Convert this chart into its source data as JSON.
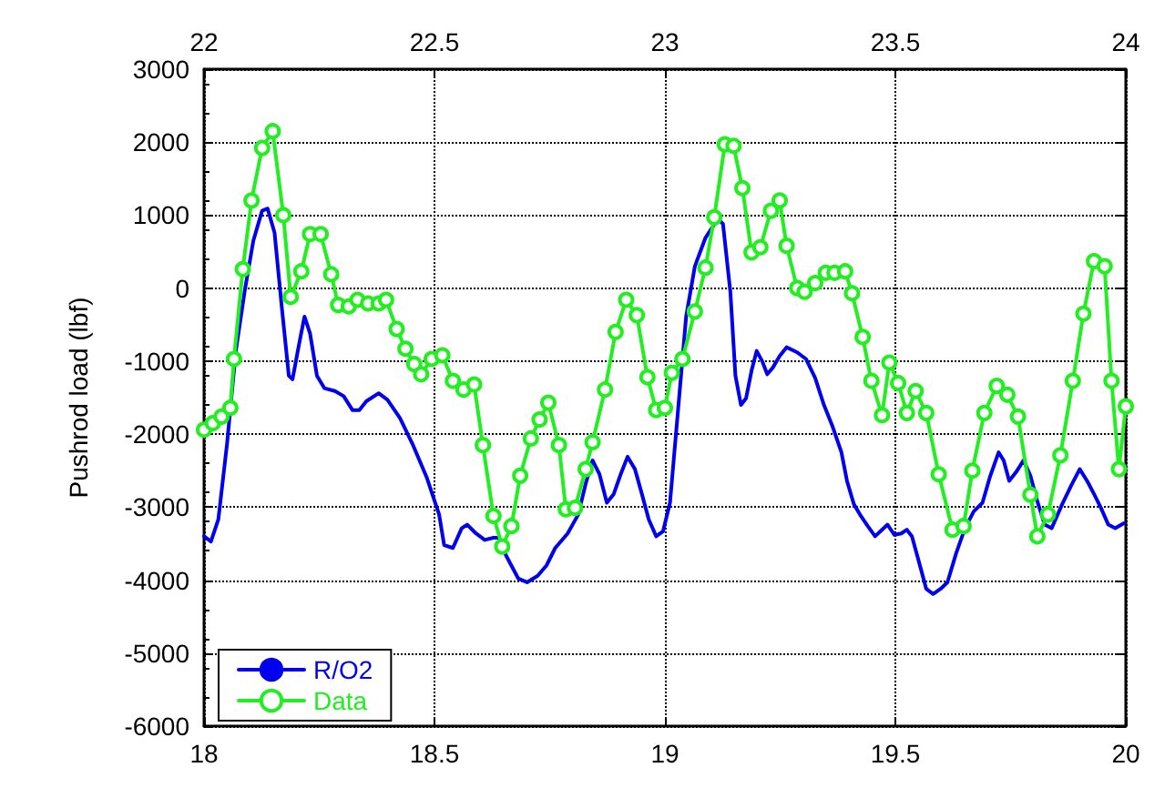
{
  "chart_data": {
    "type": "line",
    "ylabel": "Pushrod load (lbf)",
    "xlim": [
      18,
      20
    ],
    "xticks": [
      18,
      18.5,
      19,
      19.5,
      20
    ],
    "x2lim": [
      22,
      24
    ],
    "x2ticks": [
      22,
      22.5,
      23,
      23.5,
      24
    ],
    "ylim": [
      -6000,
      3000
    ],
    "yticks": [
      -6000,
      -5000,
      -4000,
      -3000,
      -2000,
      -1000,
      0,
      1000,
      2000,
      3000
    ],
    "grid": true,
    "legend": "bottom left",
    "line_style": "solid",
    "series": [
      {
        "name": "R/O2",
        "color": "#0000ee",
        "marker": "none",
        "x": [
          18.0,
          18.015,
          18.031,
          18.05,
          18.069,
          18.088,
          18.107,
          18.126,
          18.138,
          18.153,
          18.169,
          18.184,
          18.192,
          18.207,
          18.218,
          18.23,
          18.245,
          18.261,
          18.284,
          18.303,
          18.322,
          18.337,
          18.352,
          18.379,
          18.398,
          18.425,
          18.452,
          18.483,
          18.51,
          18.521,
          18.54,
          18.559,
          18.571,
          18.59,
          18.609,
          18.628,
          18.64,
          18.655,
          18.682,
          18.701,
          18.724,
          18.743,
          18.762,
          18.789,
          18.812,
          18.828,
          18.843,
          18.858,
          18.874,
          18.889,
          18.904,
          18.919,
          18.935,
          18.95,
          18.965,
          18.981,
          18.996,
          19.011,
          19.027,
          19.046,
          19.065,
          19.088,
          19.115,
          19.126,
          19.142,
          19.153,
          19.165,
          19.176,
          19.188,
          19.199,
          19.211,
          19.222,
          19.234,
          19.249,
          19.264,
          19.287,
          19.306,
          19.326,
          19.345,
          19.364,
          19.383,
          19.395,
          19.41,
          19.425,
          19.44,
          19.456,
          19.471,
          19.483,
          19.498,
          19.513,
          19.525,
          19.536,
          19.552,
          19.567,
          19.582,
          19.598,
          19.613,
          19.632,
          19.651,
          19.67,
          19.689,
          19.705,
          19.724,
          19.735,
          19.747,
          19.762,
          19.778,
          19.793,
          19.808,
          19.824,
          19.839,
          19.862,
          19.881,
          19.9,
          19.916,
          19.931,
          19.946,
          19.962,
          19.977,
          19.996
        ],
        "values": [
          -3400,
          -3470,
          -3170,
          -2130,
          -860,
          -50,
          650,
          1060,
          1090,
          760,
          -280,
          -1200,
          -1250,
          -740,
          -390,
          -620,
          -1200,
          -1370,
          -1410,
          -1480,
          -1670,
          -1670,
          -1550,
          -1440,
          -1530,
          -1780,
          -2130,
          -2590,
          -3100,
          -3520,
          -3560,
          -3290,
          -3240,
          -3360,
          -3450,
          -3420,
          -3420,
          -3660,
          -3980,
          -4030,
          -3940,
          -3800,
          -3560,
          -3360,
          -3100,
          -2680,
          -2360,
          -2550,
          -2940,
          -2820,
          -2550,
          -2310,
          -2480,
          -2820,
          -3170,
          -3400,
          -3330,
          -2940,
          -1780,
          -390,
          300,
          690,
          950,
          880,
          -50,
          -1200,
          -1600,
          -1510,
          -1130,
          -860,
          -1000,
          -1180,
          -1090,
          -930,
          -810,
          -880,
          -970,
          -1230,
          -1600,
          -1900,
          -2250,
          -2640,
          -2960,
          -3120,
          -3260,
          -3400,
          -3310,
          -3240,
          -3380,
          -3360,
          -3310,
          -3400,
          -3770,
          -4120,
          -4190,
          -4120,
          -4030,
          -3630,
          -3290,
          -3060,
          -2940,
          -2590,
          -2250,
          -2360,
          -2640,
          -2520,
          -2360,
          -2570,
          -2920,
          -3240,
          -3290,
          -2960,
          -2710,
          -2480,
          -2640,
          -2820,
          -3010,
          -3240,
          -3290,
          -3220
        ]
      },
      {
        "name": "Data",
        "color": "#22ee22",
        "marker": "circle",
        "x": [
          18.0,
          18.019,
          18.038,
          18.057,
          18.065,
          18.084,
          18.103,
          18.126,
          18.149,
          18.172,
          18.188,
          18.211,
          18.23,
          18.253,
          18.276,
          18.291,
          18.314,
          18.333,
          18.356,
          18.379,
          18.395,
          18.418,
          18.437,
          18.456,
          18.471,
          18.494,
          18.517,
          18.54,
          18.563,
          18.586,
          18.605,
          18.628,
          18.647,
          18.667,
          18.686,
          18.709,
          18.728,
          18.747,
          18.77,
          18.785,
          18.805,
          18.828,
          18.843,
          18.87,
          18.893,
          18.916,
          18.939,
          18.962,
          18.981,
          19.0,
          19.015,
          19.038,
          19.065,
          19.088,
          19.107,
          19.13,
          19.149,
          19.168,
          19.188,
          19.207,
          19.23,
          19.249,
          19.264,
          19.287,
          19.303,
          19.326,
          19.349,
          19.368,
          19.391,
          19.406,
          19.429,
          19.448,
          19.471,
          19.487,
          19.506,
          19.525,
          19.544,
          19.567,
          19.594,
          19.624,
          19.648,
          19.667,
          19.693,
          19.72,
          19.743,
          19.766,
          19.793,
          19.808,
          19.831,
          19.858,
          19.885,
          19.908,
          19.931,
          19.954,
          19.969,
          19.985,
          20.0
        ],
        "values": [
          -1940,
          -1850,
          -1760,
          -1640,
          -970,
          260,
          1200,
          1920,
          2150,
          1000,
          -120,
          230,
          740,
          740,
          190,
          -230,
          -250,
          -160,
          -210,
          -210,
          -160,
          -560,
          -830,
          -1040,
          -1180,
          -970,
          -920,
          -1270,
          -1390,
          -1320,
          -2150,
          -3120,
          -3540,
          -3260,
          -2570,
          -2060,
          -1800,
          -1570,
          -2150,
          -3030,
          -3010,
          -2480,
          -2110,
          -1390,
          -600,
          -160,
          -370,
          -1220,
          -1670,
          -1640,
          -1160,
          -970,
          -320,
          280,
          970,
          1970,
          1950,
          1370,
          490,
          560,
          1060,
          1200,
          580,
          0,
          -50,
          70,
          210,
          210,
          230,
          -70,
          -670,
          -1270,
          -1740,
          -1020,
          -1300,
          -1710,
          -1410,
          -1710,
          -2550,
          -3310,
          -3260,
          -2500,
          -1710,
          -1340,
          -1460,
          -1760,
          -2830,
          -3400,
          -3100,
          -2290,
          -1270,
          -350,
          370,
          300,
          -1270,
          -2480,
          -1620
        ]
      }
    ]
  }
}
